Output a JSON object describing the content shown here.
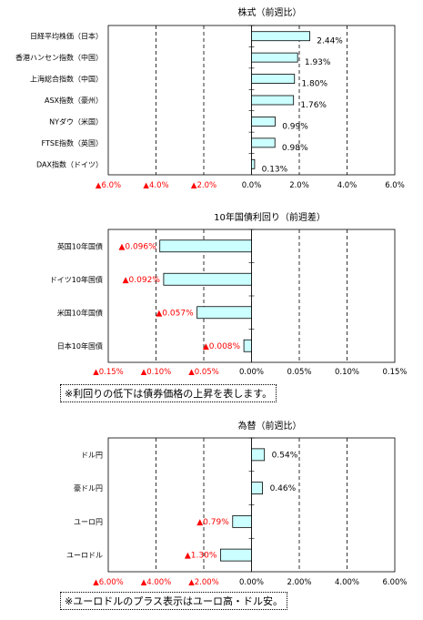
{
  "colors": {
    "bar_fill": "#ccffff",
    "bar_stroke": "#000000",
    "negative_text": "#ff0000",
    "positive_text": "#000000"
  },
  "chart_data": [
    {
      "type": "bar",
      "orientation": "horizontal",
      "title": "株式（前週比）",
      "categories": [
        "日経平均株価（日本）",
        "香港ハンセン指数（中国）",
        "上海総合指数（中国）",
        "ASX指数（豪州）",
        "NYダウ（米国）",
        "FTSE指数（英国）",
        "DAX指数（ドイツ）"
      ],
      "values": [
        2.44,
        1.93,
        1.8,
        1.76,
        0.99,
        0.98,
        0.13
      ],
      "value_labels": [
        "2.44%",
        "1.93%",
        "1.80%",
        "1.76%",
        "0.99%",
        "0.98%",
        "0.13%"
      ],
      "xlim": [
        -6,
        6
      ],
      "ticks": [
        -6,
        -4,
        -2,
        0,
        2,
        4,
        6
      ],
      "tick_labels": [
        "▲6.0%",
        "▲4.0%",
        "▲2.0%",
        "0.0%",
        "2.0%",
        "4.0%",
        "6.0%"
      ],
      "grid": "vertical dashed"
    },
    {
      "type": "bar",
      "orientation": "horizontal",
      "title": "10年国債利回り（前週差）",
      "categories": [
        "英国10年国債",
        "ドイツ10年国債",
        "米国10年国債",
        "日本10年国債"
      ],
      "values": [
        -0.096,
        -0.092,
        -0.057,
        -0.008
      ],
      "value_labels": [
        "▲0.096%",
        "▲0.092%",
        "▲0.057%",
        "▲0.008%"
      ],
      "xlim": [
        -0.15,
        0.15
      ],
      "ticks": [
        -0.15,
        -0.1,
        -0.05,
        0,
        0.05,
        0.1,
        0.15
      ],
      "tick_labels": [
        "▲0.15%",
        "▲0.10%",
        "▲0.05%",
        "0.00%",
        "0.05%",
        "0.10%",
        "0.15%"
      ],
      "grid": "vertical dashed",
      "note": "※利回りの低下は債券価格の上昇を表します。"
    },
    {
      "type": "bar",
      "orientation": "horizontal",
      "title": "為替（前週比）",
      "categories": [
        "ドル円",
        "豪ドル円",
        "ユーロ円",
        "ユーロドル"
      ],
      "values": [
        0.54,
        0.46,
        -0.79,
        -1.3
      ],
      "value_labels": [
        "0.54%",
        "0.46%",
        "▲0.79%",
        "▲1.30%"
      ],
      "xlim": [
        -6,
        6
      ],
      "ticks": [
        -6,
        -4,
        -2,
        0,
        2,
        4,
        6
      ],
      "tick_labels": [
        "▲6.00%",
        "▲4.00%",
        "▲2.00%",
        "0.00%",
        "2.00%",
        "4.00%",
        "6.00%"
      ],
      "grid": "vertical dashed",
      "note": "※ユーロドルのプラス表示はユーロ高・ドル安。"
    }
  ]
}
